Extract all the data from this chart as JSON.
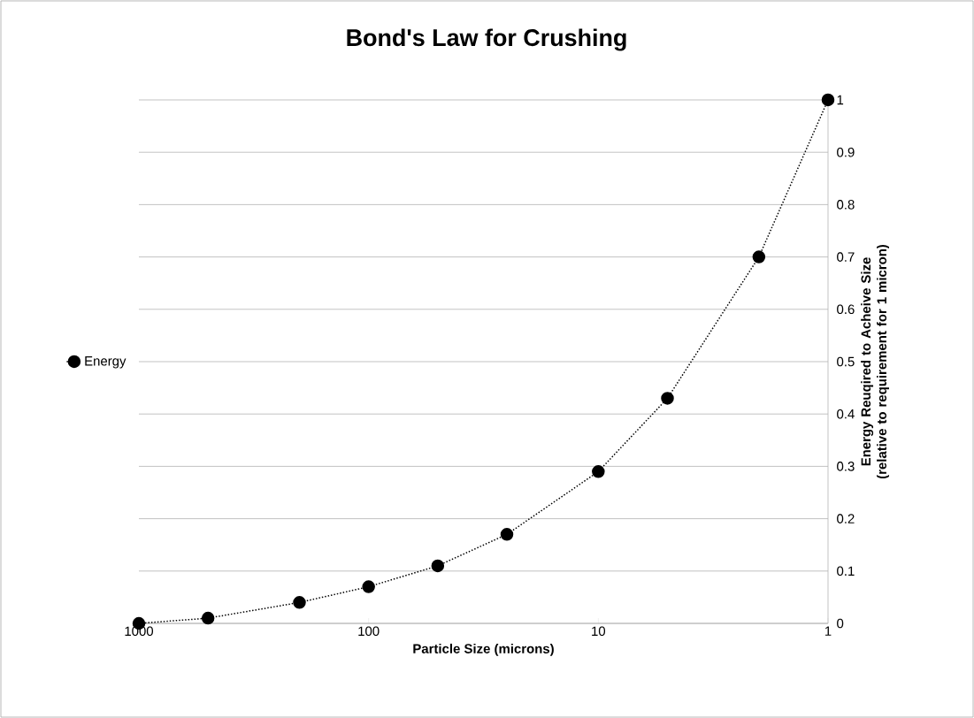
{
  "chart_data": {
    "type": "line",
    "title": "Bond's Law for Crushing",
    "xlabel": "Particle Size (microns)",
    "ylabel": "Energy Reuqired to Acheive Size (relative to requirement for 1 micron)",
    "x": [
      1000,
      500,
      200,
      100,
      50,
      25,
      10,
      5,
      2,
      1
    ],
    "series": [
      {
        "name": "Energy",
        "color": "#000000",
        "values": [
          0,
          0.01,
          0.04,
          0.07,
          0.11,
          0.17,
          0.29,
          0.43,
          0.7,
          1
        ]
      }
    ],
    "log": "x",
    "xlim": [
      1000,
      1
    ],
    "xticks": [
      1000,
      100,
      10,
      1
    ],
    "ylim": [
      0,
      1
    ],
    "yticks": [
      0,
      0.1,
      0.2,
      0.3,
      0.4,
      0.5,
      0.6,
      0.7,
      0.8,
      0.9,
      1
    ],
    "grid": "y",
    "legend": "left",
    "marker": "circle",
    "line_style": "dotted"
  }
}
